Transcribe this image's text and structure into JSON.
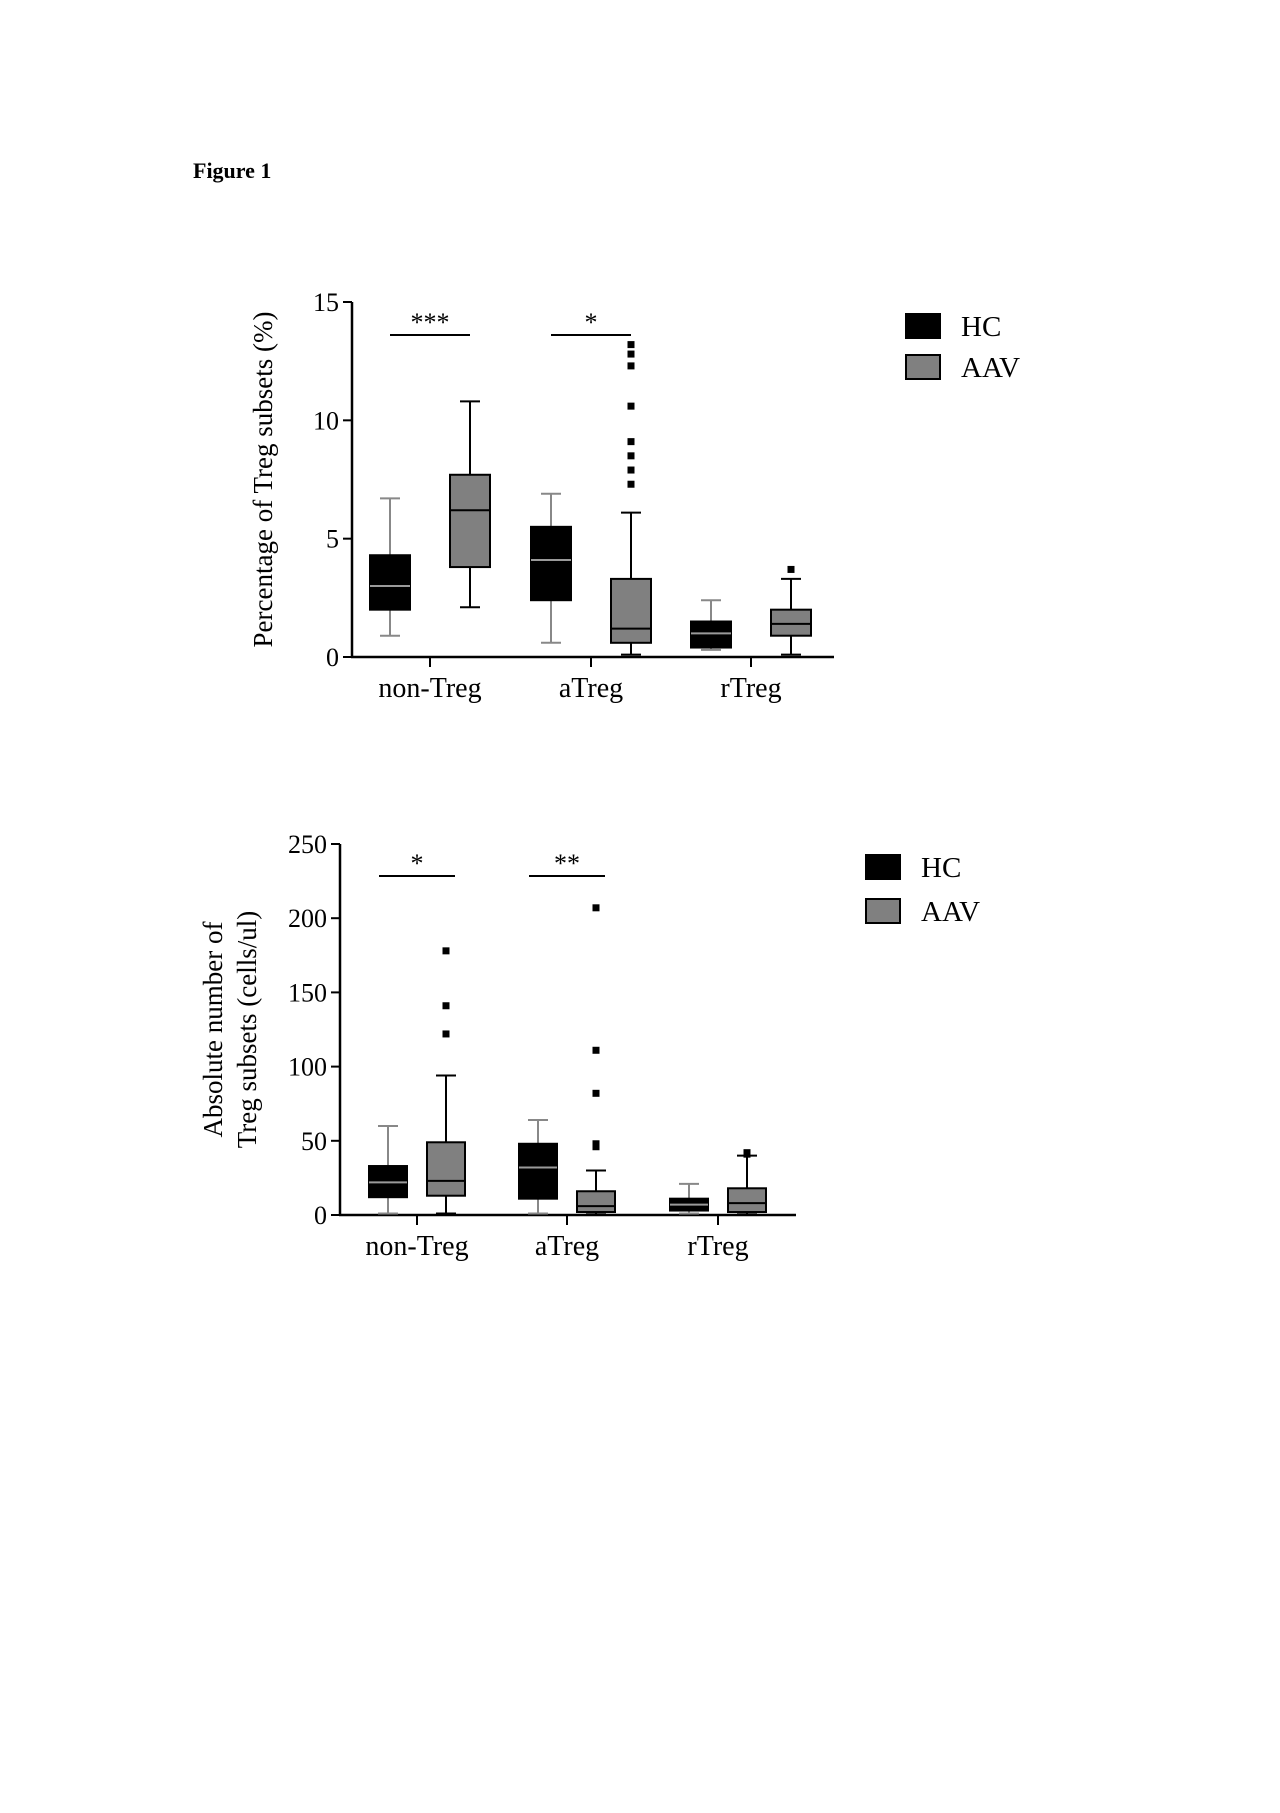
{
  "figure_label": "Figure 1",
  "chart_data": [
    {
      "type": "box",
      "title": "",
      "xlabel": "",
      "ylabel": "Percentage of Treg subsets (%)",
      "ylim": [
        0,
        15
      ],
      "yticks": [
        0,
        5,
        10,
        15
      ],
      "categories": [
        "non-Treg",
        "aTreg",
        "rTreg"
      ],
      "legend": {
        "position": "top-right",
        "entries": [
          "HC",
          "AAV"
        ]
      },
      "colors": {
        "HC": "#000000",
        "AAV": "#808080"
      },
      "significance": [
        {
          "category": "non-Treg",
          "label": "***"
        },
        {
          "category": "aTreg",
          "label": "*"
        }
      ],
      "series": [
        {
          "name": "HC",
          "boxes": [
            {
              "whisker_low": 0.9,
              "q1": 2.0,
              "median": 3.0,
              "q3": 4.3,
              "whisker_high": 6.7,
              "outliers": []
            },
            {
              "whisker_low": 0.6,
              "q1": 2.4,
              "median": 4.1,
              "q3": 5.5,
              "whisker_high": 6.9,
              "outliers": []
            },
            {
              "whisker_low": 0.3,
              "q1": 0.4,
              "median": 1.0,
              "q3": 1.5,
              "whisker_high": 2.4,
              "outliers": []
            }
          ]
        },
        {
          "name": "AAV",
          "boxes": [
            {
              "whisker_low": 2.1,
              "q1": 3.8,
              "median": 6.2,
              "q3": 7.7,
              "whisker_high": 10.8,
              "outliers": []
            },
            {
              "whisker_low": 0.1,
              "q1": 0.6,
              "median": 1.2,
              "q3": 3.3,
              "whisker_high": 6.1,
              "outliers": [
                7.3,
                7.9,
                8.5,
                9.1,
                10.6,
                12.3,
                12.8,
                13.2
              ]
            },
            {
              "whisker_low": 0.1,
              "q1": 0.9,
              "median": 1.4,
              "q3": 2.0,
              "whisker_high": 3.3,
              "outliers": [
                3.7
              ]
            }
          ]
        }
      ]
    },
    {
      "type": "box",
      "title": "",
      "xlabel": "",
      "ylabel": "Absolute number of Treg subsets (cells/ul)",
      "ylim": [
        0,
        250
      ],
      "yticks": [
        0,
        50,
        100,
        150,
        200,
        250
      ],
      "categories": [
        "non-Treg",
        "aTreg",
        "rTreg"
      ],
      "legend": {
        "position": "top-right",
        "entries": [
          "HC",
          "AAV"
        ]
      },
      "colors": {
        "HC": "#000000",
        "AAV": "#808080"
      },
      "significance": [
        {
          "category": "non-Treg",
          "label": "*"
        },
        {
          "category": "aTreg",
          "label": "**"
        }
      ],
      "series": [
        {
          "name": "HC",
          "boxes": [
            {
              "whisker_low": 1,
              "q1": 12,
              "median": 22,
              "q3": 33,
              "whisker_high": 60,
              "outliers": []
            },
            {
              "whisker_low": 1,
              "q1": 11,
              "median": 32,
              "q3": 48,
              "whisker_high": 64,
              "outliers": []
            },
            {
              "whisker_low": 1,
              "q1": 3,
              "median": 7,
              "q3": 11,
              "whisker_high": 21,
              "outliers": []
            }
          ]
        },
        {
          "name": "AAV",
          "boxes": [
            {
              "whisker_low": 1,
              "q1": 13,
              "median": 23,
              "q3": 49,
              "whisker_high": 94,
              "outliers": [
                122,
                141,
                178
              ]
            },
            {
              "whisker_low": 0.5,
              "q1": 2,
              "median": 6,
              "q3": 16,
              "whisker_high": 30,
              "outliers": [
                46,
                48,
                82,
                111,
                207
              ]
            },
            {
              "whisker_low": 0.5,
              "q1": 2,
              "median": 8,
              "q3": 18,
              "whisker_high": 40,
              "outliers": [
                41,
                42
              ]
            }
          ]
        }
      ]
    }
  ]
}
